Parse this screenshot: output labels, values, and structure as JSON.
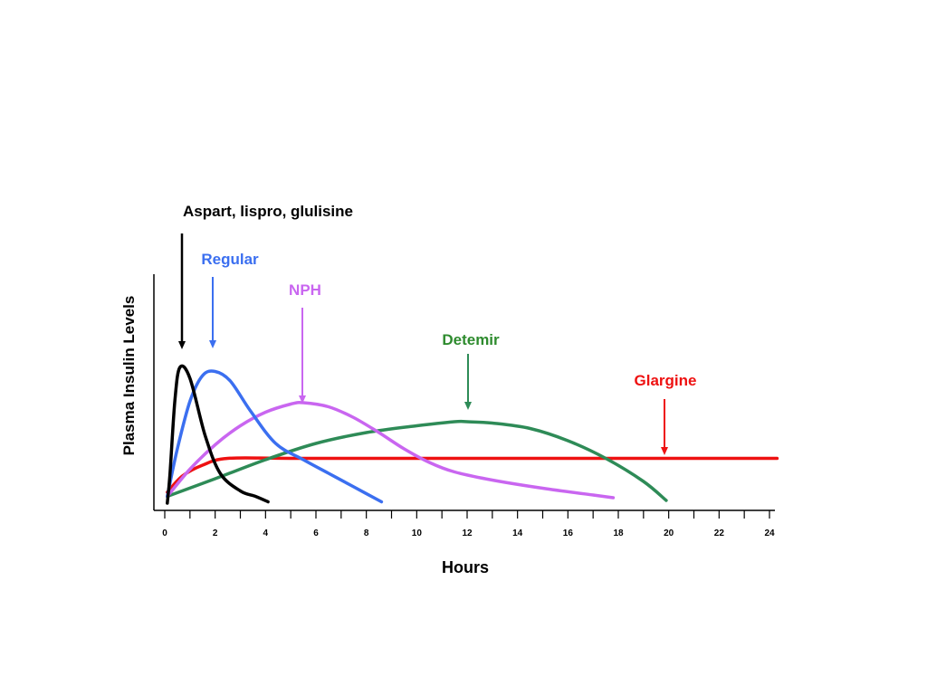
{
  "chart_data": {
    "type": "line",
    "title": "",
    "xlabel": "Hours",
    "ylabel": "Plasma Insulin Levels",
    "xlim": [
      0,
      24
    ],
    "x_ticks": [
      0,
      2,
      4,
      6,
      8,
      10,
      12,
      14,
      16,
      18,
      20,
      22,
      24
    ],
    "ylim": [
      0,
      100
    ],
    "grid": false,
    "legend": "none",
    "series": [
      {
        "name": "Aspart, lispro, glulisine",
        "color": "#000000",
        "arrow_x": 0.7,
        "points": [
          [
            0.1,
            0
          ],
          [
            0.2,
            20
          ],
          [
            0.4,
            75
          ],
          [
            0.6,
            100
          ],
          [
            1.0,
            92
          ],
          [
            1.6,
            50
          ],
          [
            2.2,
            22
          ],
          [
            3.0,
            9
          ],
          [
            3.6,
            5
          ],
          [
            4.1,
            1
          ]
        ]
      },
      {
        "name": "Regular",
        "color": "#3b6ff0",
        "arrow_x": 1.9,
        "points": [
          [
            0.1,
            5
          ],
          [
            0.5,
            40
          ],
          [
            1.0,
            75
          ],
          [
            1.5,
            94
          ],
          [
            2.0,
            97
          ],
          [
            2.6,
            90
          ],
          [
            3.4,
            68
          ],
          [
            4.4,
            44
          ],
          [
            5.5,
            32
          ],
          [
            6.5,
            22
          ],
          [
            7.5,
            12
          ],
          [
            8.6,
            1
          ]
        ]
      },
      {
        "name": "NPH",
        "color": "#c966f0",
        "arrow_x": 5.5,
        "points": [
          [
            0.1,
            5
          ],
          [
            1.0,
            25
          ],
          [
            2.0,
            43
          ],
          [
            3.0,
            57
          ],
          [
            4.0,
            67
          ],
          [
            5.0,
            73
          ],
          [
            5.5,
            74
          ],
          [
            6.5,
            71
          ],
          [
            7.5,
            63
          ],
          [
            8.5,
            52
          ],
          [
            9.5,
            40
          ],
          [
            10.5,
            30
          ],
          [
            11.5,
            23
          ],
          [
            13.0,
            17
          ],
          [
            15.0,
            11
          ],
          [
            17.0,
            6
          ],
          [
            17.8,
            4
          ]
        ]
      },
      {
        "name": "Detemir",
        "color": "#2e8b57",
        "arrow_x": 12.2,
        "points": [
          [
            0.1,
            5
          ],
          [
            2.0,
            18
          ],
          [
            4.0,
            32
          ],
          [
            6.0,
            44
          ],
          [
            8.0,
            52
          ],
          [
            10.0,
            57
          ],
          [
            11.5,
            60
          ],
          [
            12.0,
            60
          ],
          [
            13.0,
            59
          ],
          [
            14.5,
            55
          ],
          [
            16.0,
            46
          ],
          [
            17.5,
            33
          ],
          [
            19.0,
            16
          ],
          [
            19.9,
            2
          ]
        ]
      },
      {
        "name": "Glargine",
        "color": "#ee1111",
        "arrow_x": 19.7,
        "points": [
          [
            0.1,
            8
          ],
          [
            0.7,
            20
          ],
          [
            1.5,
            28
          ],
          [
            2.5,
            33
          ],
          [
            5.0,
            33
          ],
          [
            10.0,
            33
          ],
          [
            15.0,
            33
          ],
          [
            20.0,
            33
          ],
          [
            24.3,
            33
          ]
        ]
      }
    ]
  }
}
